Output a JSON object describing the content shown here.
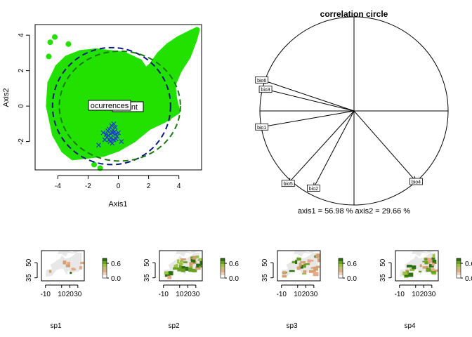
{
  "colors": {
    "cloud": "#22e000",
    "occ": "#1f35d6",
    "occ_ellipse": "#0a1a7a",
    "env_ellipse": "#1a7a10",
    "axis": "#000000"
  },
  "chart_data": [
    {
      "type": "scatter",
      "title": "",
      "xlabel": "Axis1",
      "ylabel": "Axis2",
      "xlim": [
        -5.5,
        5.5
      ],
      "ylim": [
        -3.6,
        4.6
      ],
      "xticks": [
        "-4",
        "-2",
        "0",
        "2",
        "4"
      ],
      "yticks": [
        "-2",
        "0",
        "2",
        "4"
      ],
      "labels": {
        "occurrences": "ocurrences",
        "environment_partial": "nt"
      },
      "series": [
        {
          "name": "environment",
          "marker": "dot",
          "envelope_upper": [
            [
              -4.6,
              0.0
            ],
            [
              -4.5,
              1.3
            ],
            [
              -4.0,
              2.2
            ],
            [
              -3.4,
              2.7
            ],
            [
              -2.5,
              3.0
            ],
            [
              -1.5,
              3.1
            ],
            [
              -0.5,
              3.0
            ],
            [
              0.4,
              2.9
            ],
            [
              1.4,
              2.5
            ],
            [
              1.8,
              2.0
            ],
            [
              2.2,
              2.3
            ],
            [
              2.7,
              2.9
            ],
            [
              3.3,
              3.4
            ],
            [
              4.0,
              3.8
            ],
            [
              4.7,
              4.1
            ],
            [
              5.2,
              4.3
            ],
            [
              5.0,
              3.7
            ],
            [
              4.6,
              2.8
            ],
            [
              4.0,
              2.0
            ],
            [
              3.6,
              1.2
            ],
            [
              3.7,
              0.4
            ],
            [
              3.9,
              -0.3
            ]
          ],
          "envelope_lower": [
            [
              3.9,
              -0.3
            ],
            [
              3.0,
              -0.8
            ],
            [
              2.0,
              -1.2
            ],
            [
              1.0,
              -1.9
            ],
            [
              0.0,
              -2.4
            ],
            [
              -1.0,
              -2.7
            ],
            [
              -2.0,
              -2.8
            ],
            [
              -3.0,
              -2.9
            ],
            [
              -3.6,
              -2.5
            ],
            [
              -4.2,
              -1.6
            ],
            [
              -4.6,
              0.0
            ]
          ],
          "outliers": [
            [
              -4.5,
              3.6
            ],
            [
              -4.2,
              3.9
            ],
            [
              -4.6,
              2.8
            ],
            [
              -1.6,
              -3.3
            ],
            [
              -1.2,
              -3.5
            ],
            [
              3.3,
              -0.7
            ],
            [
              4.9,
              4.1
            ],
            [
              -3.3,
              3.5
            ]
          ]
        },
        {
          "name": "ocurrences",
          "marker": "x",
          "points": [
            [
              -0.8,
              -1.6
            ],
            [
              -0.6,
              -1.3
            ],
            [
              -0.4,
              -1.5
            ],
            [
              -0.2,
              -1.2
            ],
            [
              -0.5,
              -1.8
            ],
            [
              -0.3,
              -1.9
            ],
            [
              -0.7,
              -1.4
            ],
            [
              -0.1,
              -1.7
            ],
            [
              -0.9,
              -1.9
            ],
            [
              -0.45,
              -1.1
            ],
            [
              -0.25,
              -1.45
            ],
            [
              -0.65,
              -1.65
            ],
            [
              -1.0,
              -1.5
            ],
            [
              0.0,
              -1.5
            ],
            [
              -0.55,
              -2.0
            ],
            [
              -0.35,
              -1.35
            ],
            [
              -0.75,
              -1.75
            ],
            [
              -0.15,
              -1.85
            ],
            [
              -0.5,
              -1.55
            ],
            [
              -0.4,
              -2.1
            ],
            [
              -0.2,
              -1.6
            ],
            [
              -0.6,
              -1.9
            ],
            [
              0.2,
              -2.0
            ],
            [
              -1.3,
              -2.2
            ],
            [
              -0.3,
              -1.0
            ]
          ]
        }
      ],
      "ellipses": [
        {
          "name": "ocurrences",
          "center": [
            -0.45,
            0.0
          ],
          "rx": 3.9,
          "ry": 3.3
        },
        {
          "name": "environment",
          "center": [
            0.1,
            0.0
          ],
          "rx": 4.0,
          "ry": 3.1
        }
      ]
    },
    {
      "type": "correlation_circle",
      "title": "correlation circle",
      "caption": "axis1 =  56.98 % axis2 =  29.66 %",
      "arrows": [
        {
          "name": "bio6",
          "x": -0.98,
          "y": 0.33
        },
        {
          "name": "bio3",
          "x": -0.94,
          "y": 0.23
        },
        {
          "name": "bio1",
          "x": -0.98,
          "y": -0.17
        },
        {
          "name": "bio5",
          "x": -0.7,
          "y": -0.77
        },
        {
          "name": "bio2",
          "x": -0.43,
          "y": -0.82
        },
        {
          "name": "bio4",
          "x": 0.66,
          "y": -0.75
        }
      ]
    },
    {
      "type": "heatmap",
      "maps": [
        {
          "name": "sp1",
          "coverage": 0.1
        },
        {
          "name": "sp2",
          "coverage": 0.55
        },
        {
          "name": "sp3",
          "coverage": 0.4
        },
        {
          "name": "sp4",
          "coverage": 0.5
        }
      ],
      "xticks": [
        "-10",
        "10",
        "20",
        "30"
      ],
      "yticks": [
        "35",
        "50"
      ],
      "legend_ticks": [
        "0.6",
        "0.0"
      ]
    }
  ]
}
